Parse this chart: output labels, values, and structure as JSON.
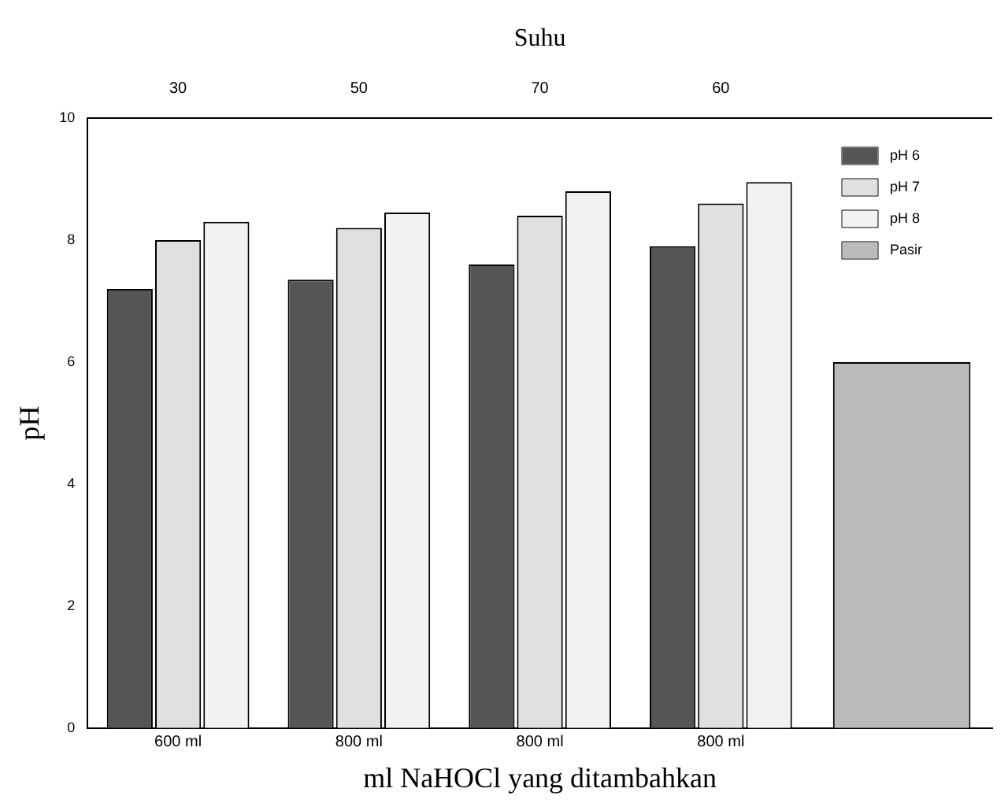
{
  "chart_data": {
    "type": "bar",
    "x2label": "Suhu",
    "xlabel": "ml NaHOCl yang ditambahkan",
    "ylabel": "pH",
    "categories": [
      "600 ml",
      "800 ml",
      "800 ml",
      "800 ml",
      null
    ],
    "annotations": [
      "30",
      "50",
      "70",
      "60"
    ],
    "series": [
      {
        "name": "pH 6",
        "color": "#555555",
        "values": [
          7.2,
          7.35,
          7.6,
          7.9,
          null
        ]
      },
      {
        "name": "pH 7",
        "color": "#e0e0e0",
        "values": [
          8.0,
          8.2,
          8.4,
          8.6,
          null
        ]
      },
      {
        "name": "pH 8",
        "color": "#f2f2f2",
        "values": [
          8.3,
          8.45,
          8.8,
          8.95,
          null
        ]
      },
      {
        "name": "Pasir",
        "color": "#bbbbbb",
        "values": [
          null,
          null,
          null,
          null,
          6.0
        ]
      }
    ],
    "ylim": [
      0,
      10
    ],
    "yticks": [
      0,
      2,
      4,
      6,
      8,
      10
    ],
    "grid": false,
    "legend": "top right"
  }
}
